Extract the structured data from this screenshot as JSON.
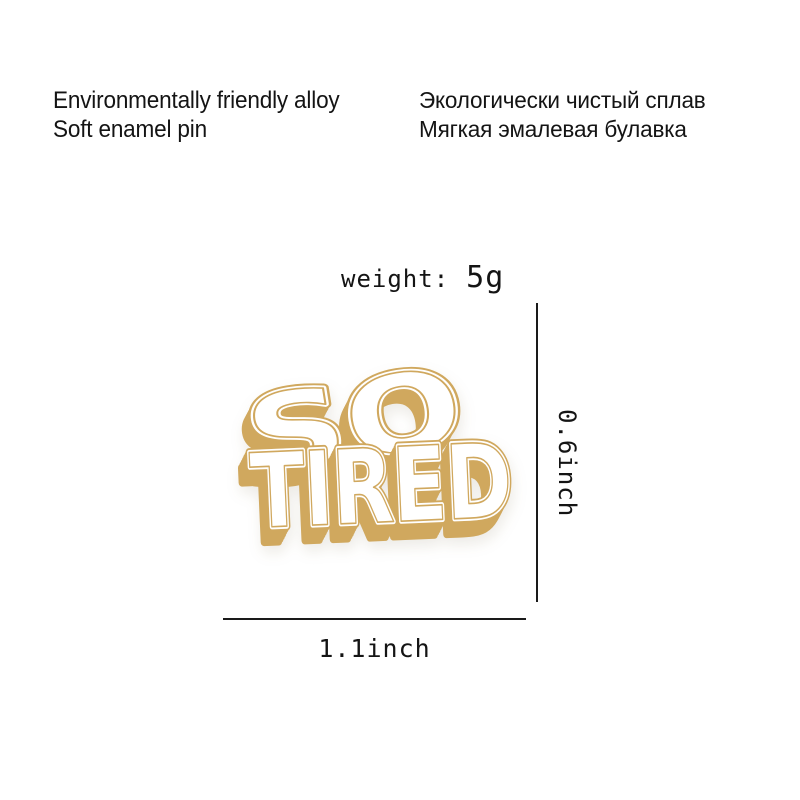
{
  "header": {
    "english": [
      "Environmentally friendly alloy",
      "Soft enamel pin"
    ],
    "russian": [
      "Экологически чистый сплав",
      "Мягкая эмалевая булавка"
    ]
  },
  "weight": {
    "label": "weight:",
    "value": "5g"
  },
  "pin": {
    "word1": "SO",
    "word2": "TIRED",
    "material_colors": {
      "metal_gold": "#d0a85e",
      "enamel_white": "#ffffff"
    }
  },
  "dimensions": {
    "width_label": "1.1inch",
    "height_label": "0.6inch"
  }
}
